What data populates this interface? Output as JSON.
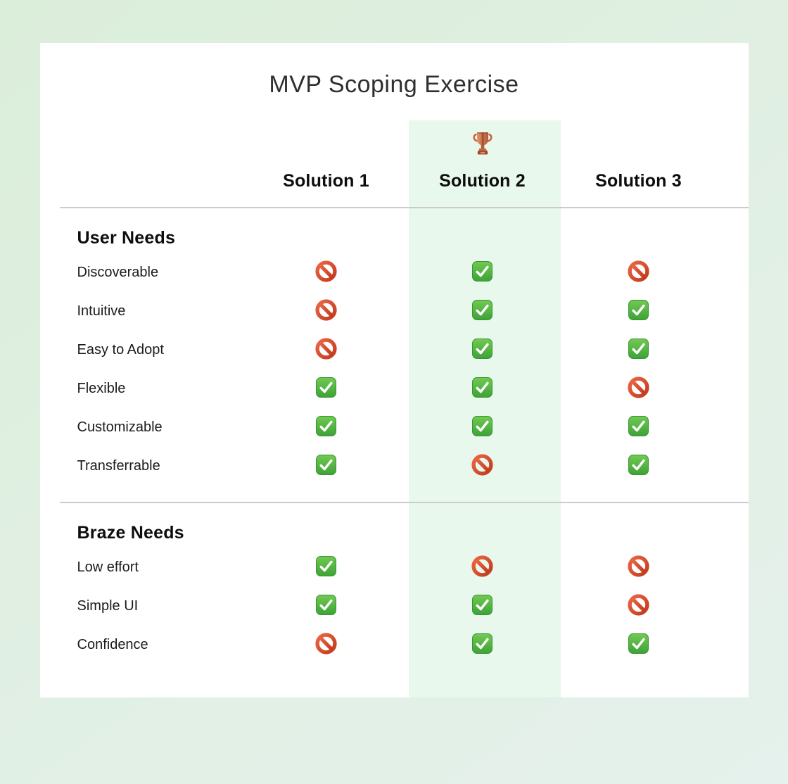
{
  "title": "MVP Scoping Exercise",
  "columns": [
    {
      "label": "Solution 1",
      "highlighted": false,
      "trophy": false
    },
    {
      "label": "Solution 2",
      "highlighted": true,
      "trophy": true
    },
    {
      "label": "Solution 3",
      "highlighted": false,
      "trophy": false
    }
  ],
  "sections": [
    {
      "heading": "User Needs",
      "rows": [
        {
          "label": "Discoverable",
          "values": [
            "no",
            "yes",
            "no"
          ]
        },
        {
          "label": "Intuitive",
          "values": [
            "no",
            "yes",
            "yes"
          ]
        },
        {
          "label": "Easy to Adopt",
          "values": [
            "no",
            "yes",
            "yes"
          ]
        },
        {
          "label": "Flexible",
          "values": [
            "yes",
            "yes",
            "no"
          ]
        },
        {
          "label": "Customizable",
          "values": [
            "yes",
            "yes",
            "yes"
          ]
        },
        {
          "label": "Transferrable",
          "values": [
            "yes",
            "no",
            "yes"
          ]
        }
      ]
    },
    {
      "heading": "Braze Needs",
      "rows": [
        {
          "label": "Low effort",
          "values": [
            "yes",
            "no",
            "no"
          ]
        },
        {
          "label": "Simple UI",
          "values": [
            "yes",
            "yes",
            "no"
          ]
        },
        {
          "label": "Confidence",
          "values": [
            "no",
            "yes",
            "yes"
          ]
        }
      ]
    }
  ],
  "icons": {
    "yes": "check-mark-button-icon",
    "no": "prohibited-icon",
    "winner": "trophy-icon"
  },
  "colors": {
    "page_bg_top": "#dbeeda",
    "page_bg_bottom": "#e5f1ec",
    "card_bg": "#ffffff",
    "highlight_column_bg": "#e9f8ec",
    "divider": "#cbcbcb",
    "heading_text": "#0d0d0d",
    "label_text": "#1b1b1b",
    "check_green_top": "#71ca52",
    "check_green_bottom": "#3ea238",
    "prohibited_red_light": "#ea6644",
    "prohibited_red_dark": "#c23a1d",
    "trophy_bronze": "#c9714a"
  }
}
